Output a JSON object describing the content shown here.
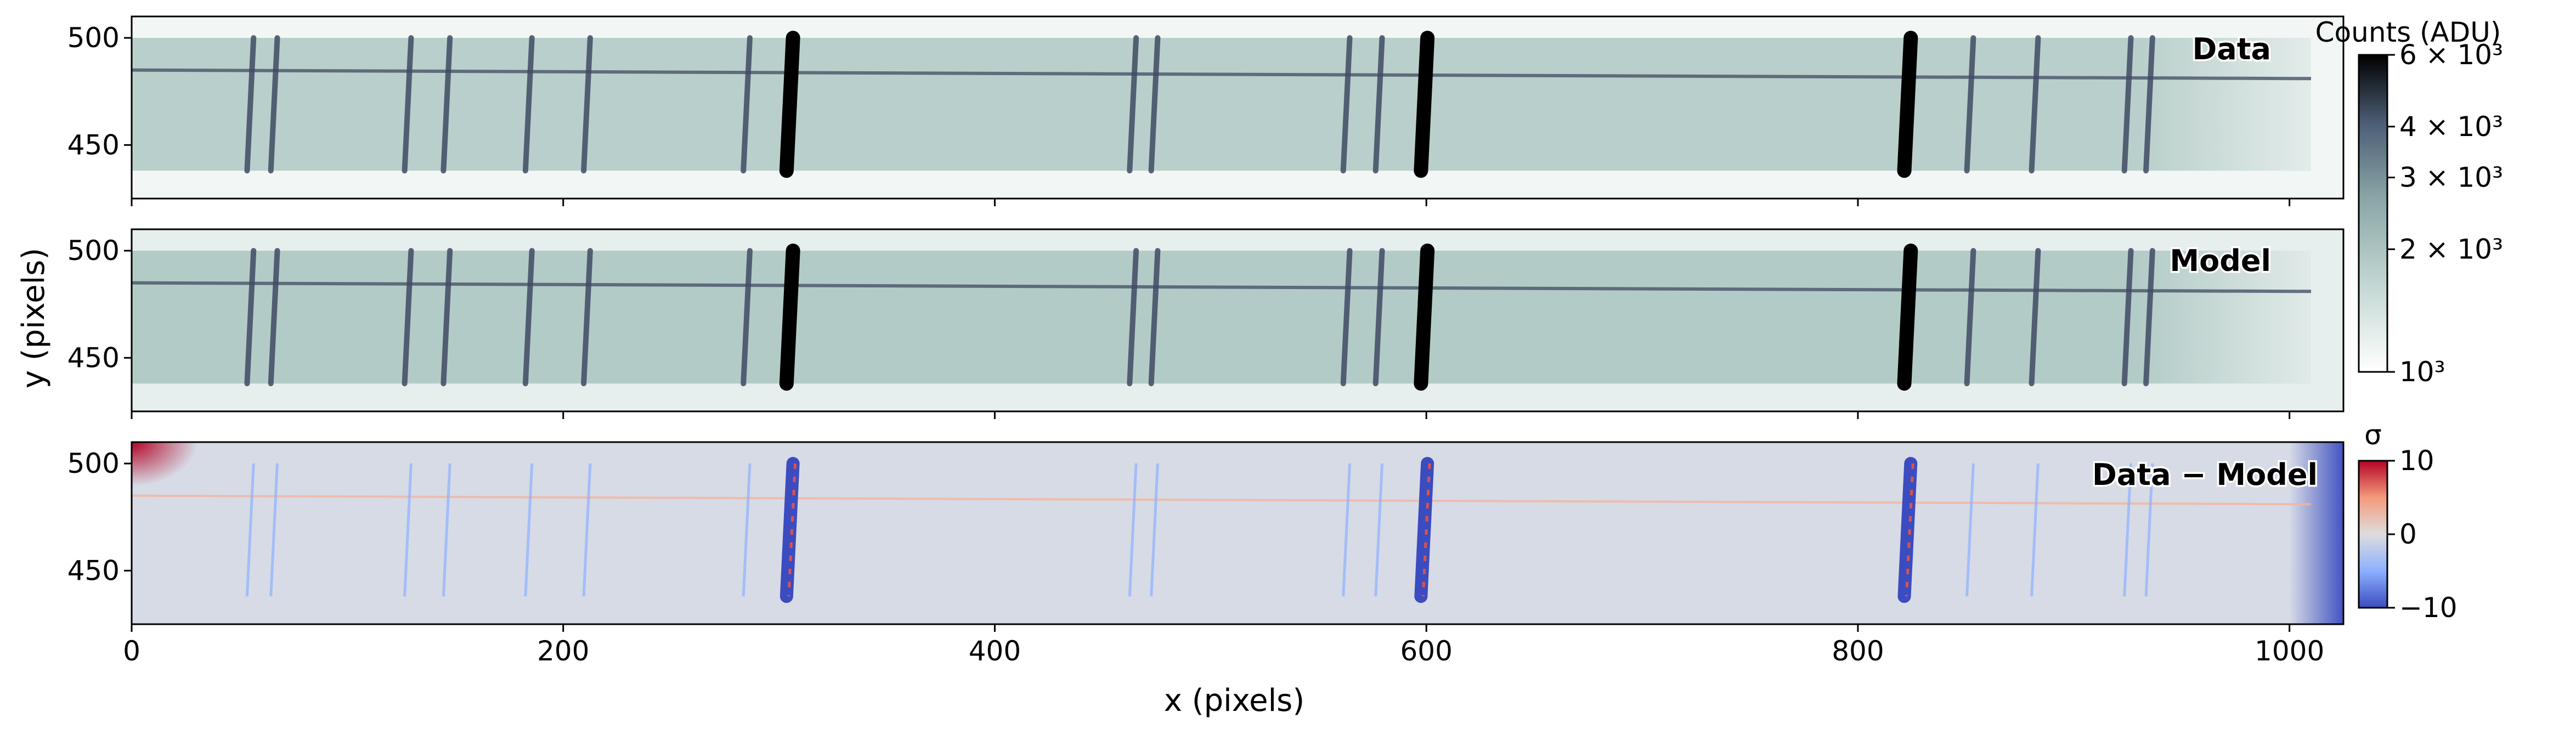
{
  "figure": {
    "xlabel": "x (pixels)",
    "ylabel": "y (pixels)",
    "x_ticks": [
      "0",
      "200",
      "400",
      "600",
      "800",
      "1000"
    ],
    "y_ticks": [
      "500",
      "450"
    ]
  },
  "panels": [
    {
      "id": "data",
      "label": "Data",
      "label_color": "#3d5360"
    },
    {
      "id": "model",
      "label": "Model",
      "label_color": "#c8392b"
    },
    {
      "id": "residual",
      "label": "Data − Model",
      "label_color": "#1a1a1a"
    }
  ],
  "colorbar_counts": {
    "title": "Counts (ADU)",
    "ticks": [
      {
        "value": 1000,
        "label": "10³"
      },
      {
        "value": 2000,
        "label": "2 × 10³"
      },
      {
        "value": 3000,
        "label": "3 × 10³"
      },
      {
        "value": 4000,
        "label": "4 × 10³"
      },
      {
        "value": 6000,
        "label": "6 × 10³"
      }
    ],
    "scale": "log",
    "range": [
      1000,
      6000
    ],
    "colors": [
      "#ffffff",
      "#a9c6c2",
      "#4d5f77",
      "#000000"
    ]
  },
  "colorbar_sigma": {
    "title": "σ",
    "ticks": [
      {
        "value": 10,
        "label": "10"
      },
      {
        "value": 0,
        "label": "0"
      },
      {
        "value": -10,
        "label": "−10"
      }
    ],
    "range": [
      -10,
      10
    ],
    "colors": [
      "#3b4cc0",
      "#dddddd",
      "#b40426"
    ]
  },
  "chart_data": {
    "type": "heatmap",
    "xlim": [
      0,
      1025
    ],
    "ylim": [
      425,
      510
    ],
    "spectral_lines_x": [
      55,
      66,
      128,
      146,
      184,
      211,
      285,
      305,
      464,
      474,
      563,
      578,
      599,
      823,
      852,
      882,
      925,
      935
    ],
    "strong_lines_x": [
      305,
      599,
      823
    ],
    "trace_y": [
      485,
      481
    ],
    "slit_y_range": [
      438,
      500
    ],
    "residual_sigma_range": [
      -10,
      10
    ]
  }
}
